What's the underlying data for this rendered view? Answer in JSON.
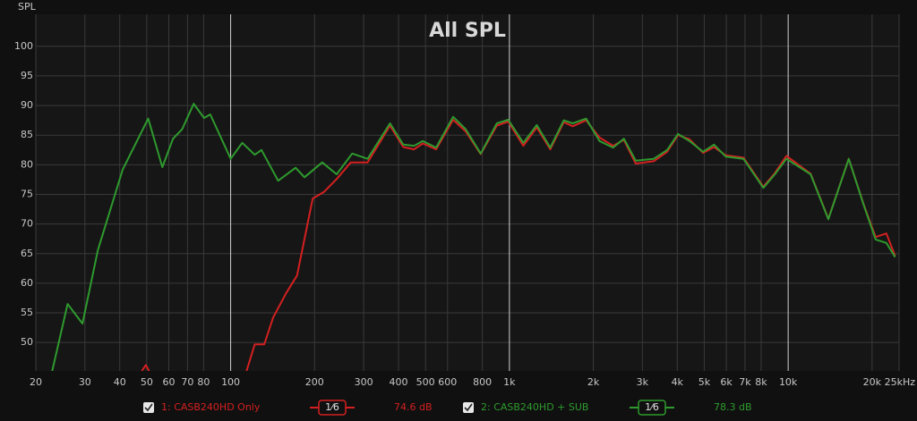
{
  "chart_data": {
    "type": "line",
    "title": "All SPL",
    "y_label": "SPL",
    "log_x": true,
    "grid": true,
    "xlim": [
      20,
      25000
    ],
    "ylim": [
      45.2,
      105.4
    ],
    "xticks": [
      20,
      30,
      40,
      50,
      60,
      70,
      80,
      100,
      200,
      300,
      400,
      500,
      600,
      800,
      {
        "value": 1000,
        "label": "1k"
      },
      {
        "value": 2000,
        "label": "2k"
      },
      {
        "value": 3000,
        "label": "3k"
      },
      {
        "value": 4000,
        "label": "4k"
      },
      {
        "value": 5000,
        "label": "5k"
      },
      {
        "value": 6000,
        "label": "6k"
      },
      {
        "value": 7000,
        "label": "7k"
      },
      {
        "value": 8000,
        "label": "8k"
      },
      {
        "value": 10000,
        "label": "10k"
      },
      {
        "value": 20000,
        "label": "20k"
      },
      {
        "value": 25000,
        "label": "25kHz"
      }
    ],
    "yticks": [
      50,
      55,
      60,
      65,
      70,
      75,
      80,
      85,
      90,
      95,
      100
    ],
    "series": [
      {
        "name": "1: CASB240HD Only",
        "color": "#d42020",
        "smoothing": "1⁄6",
        "level": "74.6 dB",
        "x": [
          48,
          49.6,
          51,
          51.5,
          114,
          122,
          132,
          142,
          158,
          173,
          197,
          216,
          240,
          270,
          310,
          373,
          416,
          455,
          489,
          546,
          628,
          697,
          789,
          901,
          990,
          1122,
          1254,
          1402,
          1567,
          1686,
          1884,
          2106,
          2354,
          2574,
          2838,
          3294,
          3679,
          4025,
          4429,
          4953,
          5420,
          5965,
          6917,
          8148,
          8961,
          9858,
          12040,
          13940,
          16500,
          18700,
          20600,
          22500,
          24200
        ],
        "values": [
          45.2,
          46.2,
          45.2,
          null,
          45.2,
          49.7,
          49.7,
          54.2,
          58.3,
          61.3,
          74.3,
          75.4,
          77.6,
          80.4,
          80.4,
          86.6,
          83.0,
          82.6,
          83.6,
          82.6,
          87.6,
          85.6,
          81.8,
          86.6,
          87.3,
          83.2,
          86.3,
          82.6,
          87.2,
          86.5,
          87.5,
          84.6,
          83.2,
          84.2,
          80.2,
          80.6,
          82.2,
          85.0,
          84.3,
          82.0,
          83.0,
          81.6,
          81.2,
          76.3,
          78.6,
          81.5,
          78.5,
          70.9,
          81.0,
          73.2,
          67.8,
          68.4,
          64.6
        ]
      },
      {
        "name": "2: CASB240HD + SUB",
        "color": "#2e9a2e",
        "smoothing": "1⁄6",
        "level": "78.3 dB",
        "x": [
          22.9,
          26,
          29.4,
          33.4,
          41,
          50.6,
          56.9,
          62.1,
          67,
          73.7,
          80.3,
          84.5,
          100,
          110,
          122,
          129,
          148,
          171,
          184,
          213,
          240,
          273,
          310,
          373,
          416,
          455,
          489,
          546,
          628,
          697,
          789,
          901,
          990,
          1122,
          1254,
          1402,
          1567,
          1686,
          1884,
          2106,
          2354,
          2574,
          2838,
          3294,
          3679,
          4025,
          4429,
          4953,
          5420,
          5965,
          6917,
          8148,
          8961,
          9858,
          12040,
          13940,
          16500,
          18700,
          20600,
          22500,
          24200
        ],
        "values": [
          45.2,
          56.5,
          53.2,
          65.6,
          79.2,
          87.8,
          79.6,
          84.4,
          86.0,
          90.3,
          87.9,
          88.5,
          81.0,
          83.7,
          81.7,
          82.5,
          77.3,
          79.5,
          77.9,
          80.4,
          78.4,
          81.9,
          81.0,
          87.0,
          83.4,
          83.2,
          84.0,
          82.9,
          88.1,
          86.0,
          81.9,
          87.0,
          87.6,
          83.7,
          86.7,
          82.9,
          87.5,
          87.0,
          87.8,
          84.0,
          82.9,
          84.4,
          80.7,
          81.0,
          82.5,
          85.2,
          84.0,
          82.2,
          83.4,
          81.4,
          81.0,
          76.1,
          78.4,
          81.0,
          78.4,
          70.8,
          81.0,
          73.1,
          67.4,
          66.8,
          64.4
        ]
      }
    ]
  }
}
